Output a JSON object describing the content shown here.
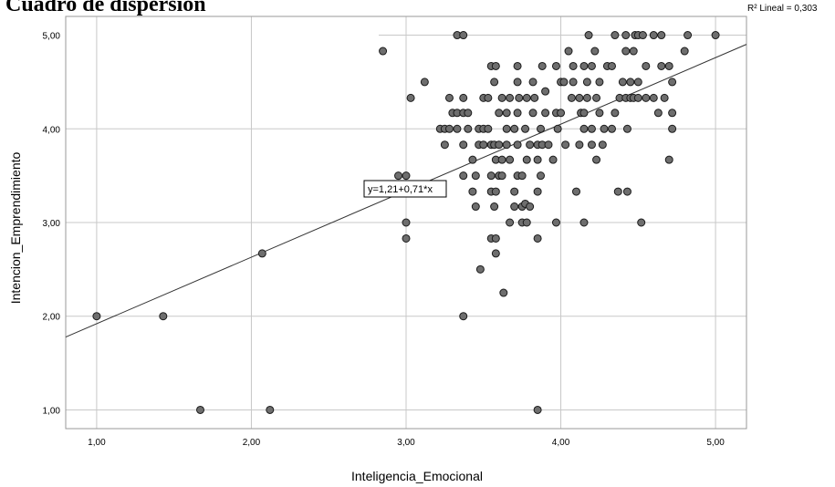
{
  "chart_data": {
    "type": "scatter",
    "title": "Cuadro de dispersión",
    "xlabel": "Inteligencia_Emocional",
    "ylabel": "Intencion_Emprendimiento",
    "xlim": [
      0.8,
      5.2
    ],
    "ylim": [
      0.8,
      5.2
    ],
    "x_ticks": [
      "1,00",
      "2,00",
      "3,00",
      "4,00",
      "5,00"
    ],
    "y_ticks": [
      "1,00",
      "2,00",
      "3,00",
      "4,00",
      "5,00"
    ],
    "grid": true,
    "fit_line": {
      "intercept": 1.21,
      "slope": 0.71,
      "equation_label": "y=1,21+0,71*x"
    },
    "r2_label": "R² Lineal = 0,303",
    "colors": {
      "point_fill": "#6e6e6e",
      "point_stroke": "#1a1a1a",
      "grid": "#c8c8c8",
      "line": "#333333"
    },
    "points": [
      [
        1.0,
        2.0
      ],
      [
        1.43,
        2.0
      ],
      [
        1.67,
        1.0
      ],
      [
        2.07,
        2.67
      ],
      [
        2.12,
        1.0
      ],
      [
        2.85,
        4.83
      ],
      [
        2.95,
        3.5
      ],
      [
        3.0,
        3.5
      ],
      [
        3.0,
        3.0
      ],
      [
        3.0,
        2.83
      ],
      [
        3.03,
        4.33
      ],
      [
        3.12,
        4.5
      ],
      [
        3.33,
        5.0
      ],
      [
        3.37,
        5.0
      ],
      [
        3.37,
        2.0
      ],
      [
        3.22,
        4.0
      ],
      [
        3.25,
        4.0
      ],
      [
        3.28,
        4.0
      ],
      [
        3.25,
        3.83
      ],
      [
        3.28,
        4.33
      ],
      [
        3.3,
        4.17
      ],
      [
        3.33,
        4.17
      ],
      [
        3.37,
        4.17
      ],
      [
        3.4,
        4.17
      ],
      [
        3.33,
        4.0
      ],
      [
        3.37,
        3.83
      ],
      [
        3.37,
        4.33
      ],
      [
        3.4,
        4.0
      ],
      [
        3.43,
        3.67
      ],
      [
        3.37,
        3.5
      ],
      [
        3.45,
        3.5
      ],
      [
        3.43,
        3.33
      ],
      [
        3.45,
        3.17
      ],
      [
        3.47,
        4.0
      ],
      [
        3.5,
        4.0
      ],
      [
        3.47,
        3.83
      ],
      [
        3.5,
        3.83
      ],
      [
        3.5,
        4.33
      ],
      [
        3.53,
        4.33
      ],
      [
        3.55,
        4.67
      ],
      [
        3.57,
        4.5
      ],
      [
        3.58,
        4.67
      ],
      [
        3.53,
        4.0
      ],
      [
        3.55,
        3.83
      ],
      [
        3.57,
        3.83
      ],
      [
        3.58,
        3.67
      ],
      [
        3.55,
        3.5
      ],
      [
        3.55,
        3.33
      ],
      [
        3.57,
        3.17
      ],
      [
        3.58,
        3.33
      ],
      [
        3.55,
        2.83
      ],
      [
        3.58,
        2.83
      ],
      [
        3.58,
        2.67
      ],
      [
        3.48,
        2.5
      ],
      [
        3.63,
        2.25
      ],
      [
        3.6,
        4.17
      ],
      [
        3.62,
        4.33
      ],
      [
        3.6,
        3.83
      ],
      [
        3.62,
        3.67
      ],
      [
        3.6,
        3.5
      ],
      [
        3.62,
        3.5
      ],
      [
        3.65,
        3.83
      ],
      [
        3.65,
        4.0
      ],
      [
        3.65,
        4.17
      ],
      [
        3.67,
        4.33
      ],
      [
        3.67,
        3.67
      ],
      [
        3.67,
        3.0
      ],
      [
        3.7,
        3.17
      ],
      [
        3.7,
        3.33
      ],
      [
        3.72,
        3.5
      ],
      [
        3.72,
        3.83
      ],
      [
        3.7,
        4.0
      ],
      [
        3.72,
        4.17
      ],
      [
        3.72,
        4.5
      ],
      [
        3.72,
        4.67
      ],
      [
        3.73,
        4.33
      ],
      [
        3.75,
        3.17
      ],
      [
        3.75,
        3.0
      ],
      [
        3.75,
        3.5
      ],
      [
        3.77,
        3.2
      ],
      [
        3.77,
        4.0
      ],
      [
        3.78,
        4.33
      ],
      [
        3.78,
        3.67
      ],
      [
        3.8,
        3.83
      ],
      [
        3.8,
        3.17
      ],
      [
        3.78,
        3.0
      ],
      [
        3.82,
        4.17
      ],
      [
        3.82,
        4.5
      ],
      [
        3.83,
        4.33
      ],
      [
        3.85,
        3.83
      ],
      [
        3.85,
        3.67
      ],
      [
        3.85,
        3.33
      ],
      [
        3.87,
        3.5
      ],
      [
        3.87,
        4.0
      ],
      [
        3.85,
        2.83
      ],
      [
        3.85,
        1.0
      ],
      [
        3.88,
        3.83
      ],
      [
        3.88,
        4.67
      ],
      [
        3.9,
        4.17
      ],
      [
        3.9,
        4.4
      ],
      [
        3.92,
        3.83
      ],
      [
        3.95,
        3.67
      ],
      [
        3.97,
        4.67
      ],
      [
        3.97,
        4.17
      ],
      [
        3.97,
        3.0
      ],
      [
        3.98,
        4.0
      ],
      [
        4.0,
        4.5
      ],
      [
        4.0,
        4.17
      ],
      [
        4.02,
        4.5
      ],
      [
        4.03,
        3.83
      ],
      [
        4.05,
        4.83
      ],
      [
        4.07,
        4.33
      ],
      [
        4.08,
        4.5
      ],
      [
        4.08,
        4.67
      ],
      [
        4.1,
        3.33
      ],
      [
        4.12,
        4.33
      ],
      [
        4.12,
        3.83
      ],
      [
        4.13,
        4.17
      ],
      [
        4.15,
        4.67
      ],
      [
        4.15,
        4.17
      ],
      [
        4.15,
        4.0
      ],
      [
        4.15,
        3.0
      ],
      [
        4.17,
        4.33
      ],
      [
        4.17,
        4.5
      ],
      [
        4.18,
        5.0
      ],
      [
        4.2,
        4.67
      ],
      [
        4.2,
        3.83
      ],
      [
        4.2,
        4.0
      ],
      [
        4.22,
        4.83
      ],
      [
        4.23,
        4.33
      ],
      [
        4.23,
        3.67
      ],
      [
        4.25,
        4.5
      ],
      [
        4.25,
        4.17
      ],
      [
        4.27,
        3.83
      ],
      [
        4.28,
        4.0
      ],
      [
        4.3,
        4.67
      ],
      [
        4.33,
        4.67
      ],
      [
        4.33,
        4.0
      ],
      [
        4.35,
        4.17
      ],
      [
        4.35,
        5.0
      ],
      [
        4.37,
        3.33
      ],
      [
        4.38,
        4.33
      ],
      [
        4.4,
        4.5
      ],
      [
        4.42,
        4.33
      ],
      [
        4.42,
        4.83
      ],
      [
        4.42,
        5.0
      ],
      [
        4.43,
        3.33
      ],
      [
        4.43,
        4.0
      ],
      [
        4.45,
        4.5
      ],
      [
        4.45,
        4.33
      ],
      [
        4.47,
        4.83
      ],
      [
        4.47,
        4.33
      ],
      [
        4.48,
        5.0
      ],
      [
        4.5,
        4.5
      ],
      [
        4.5,
        5.0
      ],
      [
        4.5,
        4.33
      ],
      [
        4.52,
        3.0
      ],
      [
        4.53,
        5.0
      ],
      [
        4.55,
        4.67
      ],
      [
        4.55,
        4.33
      ],
      [
        4.6,
        4.33
      ],
      [
        4.6,
        5.0
      ],
      [
        4.63,
        4.17
      ],
      [
        4.65,
        4.67
      ],
      [
        4.65,
        5.0
      ],
      [
        4.67,
        4.33
      ],
      [
        4.7,
        4.67
      ],
      [
        4.7,
        3.67
      ],
      [
        4.72,
        4.5
      ],
      [
        4.72,
        4.17
      ],
      [
        4.72,
        4.0
      ],
      [
        4.8,
        4.83
      ],
      [
        4.82,
        5.0
      ],
      [
        5.0,
        5.0
      ]
    ]
  }
}
